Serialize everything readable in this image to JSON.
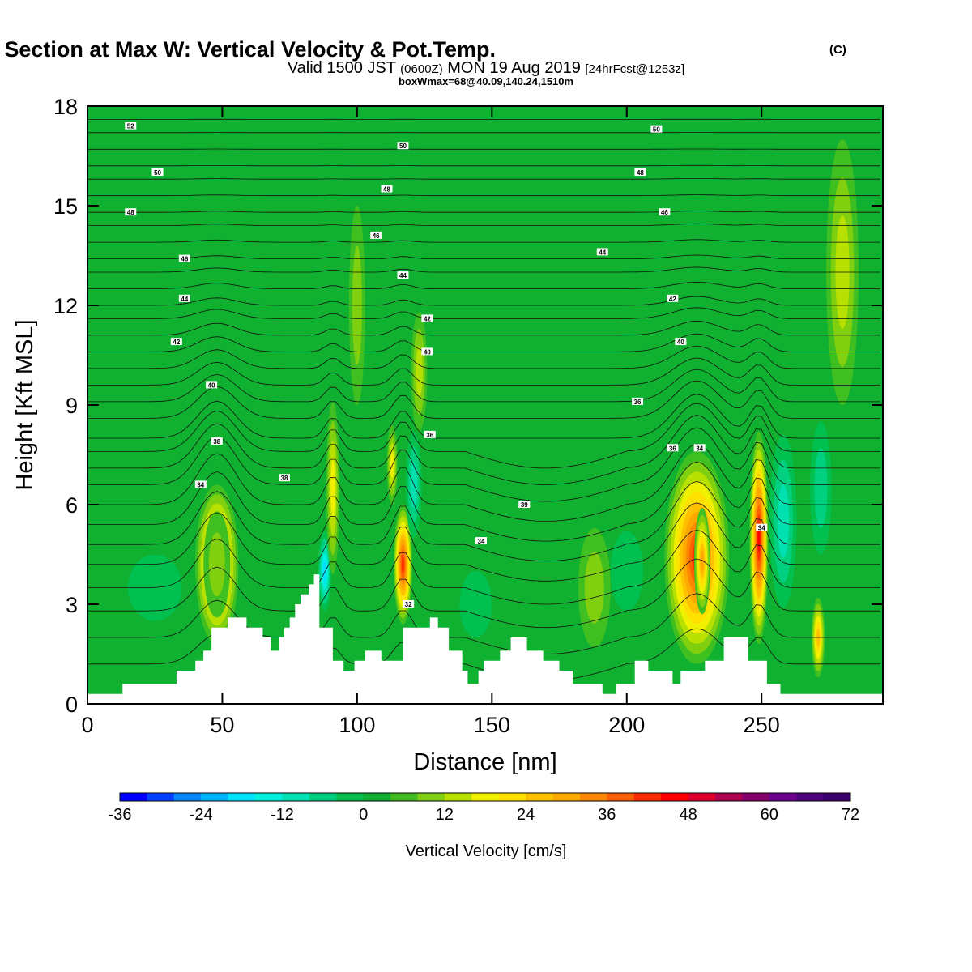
{
  "title": {
    "main": "Wind-Parallel Section at Max W: Vertical Velocity & Pot.Temp.",
    "copyright": "(C)",
    "valid_prefix": "Valid 1500 JST",
    "valid_utc": "(0600Z)",
    "valid_date": "MON 19 Aug 2019",
    "forecast": "[24hrFcst@1253z]",
    "boxwmax": "boxWmax=68@40.09,140.24,1510m"
  },
  "chart_data": {
    "type": "heatmap",
    "xlabel": "Distance [nm]",
    "ylabel": "Height [Kft MSL]",
    "xlim": [
      0,
      295
    ],
    "ylim": [
      0,
      18
    ],
    "xticks": [
      0,
      50,
      100,
      150,
      200,
      250
    ],
    "yticks": [
      0,
      3,
      6,
      9,
      12,
      15,
      18
    ],
    "colorbar": {
      "label": "Vertical Velocity [cm/s]",
      "min": -36,
      "max": 72,
      "step": 4,
      "tick_labels": [
        -36,
        -24,
        -12,
        0,
        12,
        24,
        36,
        48,
        60,
        72
      ],
      "colors": [
        "#0000ff",
        "#0044ff",
        "#0088ff",
        "#00b4ff",
        "#00e0ff",
        "#00f0e0",
        "#00e0b0",
        "#00d080",
        "#00c050",
        "#10b030",
        "#40c020",
        "#80d010",
        "#b8e000",
        "#f0f000",
        "#ffe000",
        "#ffc000",
        "#ffa800",
        "#ff8800",
        "#ff6000",
        "#ff3000",
        "#ff0000",
        "#e00030",
        "#b00050",
        "#880070",
        "#700090",
        "#500080",
        "#3c0070"
      ]
    },
    "terrain": {
      "distance_nm": [
        0,
        13,
        13,
        33,
        33,
        40,
        40,
        43,
        43,
        46,
        46,
        52,
        52,
        59,
        59,
        65,
        65,
        68,
        68,
        71,
        71,
        73,
        73,
        75,
        75,
        77,
        77,
        79,
        79,
        82,
        82,
        84,
        84,
        86,
        86,
        91,
        91,
        95,
        95,
        99,
        99,
        103,
        103,
        106,
        106,
        109,
        109,
        117,
        117,
        127,
        127,
        130,
        130,
        134,
        134,
        139,
        139,
        141,
        141,
        145,
        145,
        147,
        147,
        153,
        153,
        157,
        157,
        163,
        163,
        169,
        169,
        175,
        175,
        180,
        180,
        191,
        191,
        196,
        196,
        203,
        203,
        208,
        208,
        217,
        217,
        220,
        220,
        229,
        229,
        236,
        236,
        245,
        245,
        252,
        252,
        257,
        257,
        264,
        264,
        269,
        269,
        295
      ],
      "height_kft": [
        0.3,
        0.3,
        0.6,
        0.6,
        1.0,
        1.0,
        1.3,
        1.3,
        1.6,
        1.6,
        2.3,
        2.3,
        2.6,
        2.6,
        2.3,
        2.3,
        2.0,
        2.0,
        1.6,
        1.6,
        2.0,
        2.0,
        2.3,
        2.3,
        2.6,
        2.6,
        3.0,
        3.0,
        3.3,
        3.3,
        3.6,
        3.6,
        3.9,
        3.9,
        2.3,
        2.3,
        1.3,
        1.3,
        1.0,
        1.0,
        1.3,
        1.3,
        1.6,
        1.6,
        1.6,
        1.6,
        1.3,
        1.3,
        2.3,
        2.3,
        2.6,
        2.6,
        2.3,
        2.3,
        1.6,
        1.6,
        1.0,
        1.0,
        0.6,
        0.6,
        1.0,
        1.0,
        1.3,
        1.3,
        1.6,
        1.6,
        2.0,
        2.0,
        1.6,
        1.6,
        1.3,
        1.3,
        1.0,
        1.0,
        0.6,
        0.6,
        0.3,
        0.3,
        0.6,
        0.6,
        1.3,
        1.3,
        1.0,
        1.0,
        0.6,
        0.6,
        1.0,
        1.0,
        1.3,
        1.3,
        2.0,
        2.0,
        1.3,
        1.3,
        0.6,
        0.6,
        0.3,
        0.3,
        0.3,
        0.3,
        0.3,
        0.3
      ]
    },
    "velocity_cells": [
      {
        "x": 48,
        "y": 4.2,
        "sx": 8,
        "sy": 2.4,
        "v": 30
      },
      {
        "x": 48,
        "y": 4.2,
        "sx": 5,
        "sy": 1.6,
        "v": 8
      },
      {
        "x": 88,
        "y": 4.0,
        "sx": 2.5,
        "sy": 1.2,
        "v": -20
      },
      {
        "x": 91,
        "y": 6.5,
        "sx": 2.5,
        "sy": 2.6,
        "v": 16
      },
      {
        "x": 117,
        "y": 4.2,
        "sx": 3.5,
        "sy": 1.8,
        "v": 38
      },
      {
        "x": 113,
        "y": 7.2,
        "sx": 2,
        "sy": 1.2,
        "v": 14
      },
      {
        "x": 121,
        "y": 6.6,
        "sx": 3,
        "sy": 1.6,
        "v": -10
      },
      {
        "x": 123,
        "y": 10.0,
        "sx": 3,
        "sy": 1.8,
        "v": 12
      },
      {
        "x": 226,
        "y": 4.4,
        "sx": 12,
        "sy": 3.2,
        "v": 40
      },
      {
        "x": 228,
        "y": 4.3,
        "sx": 3,
        "sy": 1.6,
        "v": 28
      },
      {
        "x": 249,
        "y": 5.0,
        "sx": 3.5,
        "sy": 3.2,
        "v": 44
      },
      {
        "x": 258,
        "y": 5.5,
        "sx": 5,
        "sy": 2.6,
        "v": -10
      },
      {
        "x": 271,
        "y": 2.0,
        "sx": 2.5,
        "sy": 1.2,
        "v": 22
      },
      {
        "x": 188,
        "y": 3.5,
        "sx": 6,
        "sy": 1.8,
        "v": 8
      },
      {
        "x": 280,
        "y": 13.0,
        "sx": 6,
        "sy": 4.0,
        "v": 10
      },
      {
        "x": 272,
        "y": 6.5,
        "sx": 4,
        "sy": 2.0,
        "v": -8
      },
      {
        "x": 25,
        "y": 3.5,
        "sx": 10,
        "sy": 1.0,
        "v": -4
      },
      {
        "x": 144,
        "y": 3.0,
        "sx": 6,
        "sy": 1.0,
        "v": -4
      },
      {
        "x": 200,
        "y": 4.0,
        "sx": 6,
        "sy": 1.2,
        "v": -4
      },
      {
        "x": 100,
        "y": 12.0,
        "sx": 3,
        "sy": 3.0,
        "v": 6
      }
    ],
    "isentropes": [
      {
        "level": "52",
        "label_x": 16,
        "label_y": 17.4
      },
      {
        "level": "50",
        "label_x": 26,
        "label_y": 16.0
      },
      {
        "level": "48",
        "label_x": 16,
        "label_y": 14.8
      },
      {
        "level": "46",
        "label_x": 36,
        "label_y": 13.4
      },
      {
        "level": "44",
        "label_x": 36,
        "label_y": 12.2
      },
      {
        "level": "42",
        "label_x": 33,
        "label_y": 10.9
      },
      {
        "level": "40",
        "label_x": 46,
        "label_y": 9.6
      },
      {
        "level": "38",
        "label_x": 48,
        "label_y": 7.9
      },
      {
        "level": "34",
        "label_x": 42,
        "label_y": 6.6
      },
      {
        "level": "38",
        "label_x": 73,
        "label_y": 6.8
      },
      {
        "level": "50",
        "label_x": 117,
        "label_y": 16.8
      },
      {
        "level": "48",
        "label_x": 111,
        "label_y": 15.5
      },
      {
        "level": "46",
        "label_x": 107,
        "label_y": 14.1
      },
      {
        "level": "44",
        "label_x": 117,
        "label_y": 12.9
      },
      {
        "level": "42",
        "label_x": 126,
        "label_y": 11.6
      },
      {
        "level": "40",
        "label_x": 126,
        "label_y": 10.6
      },
      {
        "level": "36",
        "label_x": 127,
        "label_y": 8.1
      },
      {
        "level": "39",
        "label_x": 162,
        "label_y": 6.0
      },
      {
        "level": "34",
        "label_x": 146,
        "label_y": 4.9
      },
      {
        "level": "32",
        "label_x": 119,
        "label_y": 3.0
      },
      {
        "level": "50",
        "label_x": 211,
        "label_y": 17.3
      },
      {
        "level": "48",
        "label_x": 205,
        "label_y": 16.0
      },
      {
        "level": "46",
        "label_x": 214,
        "label_y": 14.8
      },
      {
        "level": "44",
        "label_x": 191,
        "label_y": 13.6
      },
      {
        "level": "42",
        "label_x": 217,
        "label_y": 12.2
      },
      {
        "level": "40",
        "label_x": 220,
        "label_y": 10.9
      },
      {
        "level": "36",
        "label_x": 204,
        "label_y": 9.1
      },
      {
        "level": "36",
        "label_x": 217,
        "label_y": 7.7
      },
      {
        "level": "34",
        "label_x": 227,
        "label_y": 7.7
      },
      {
        "level": "34",
        "label_x": 250,
        "label_y": 5.3
      }
    ],
    "isentrope_levels_kft": [
      1.2,
      2.0,
      2.8,
      3.5,
      4.2,
      4.8,
      5.4,
      6.0,
      6.6,
      7.1,
      7.6,
      8.0,
      8.6,
      9.1,
      9.6,
      10.1,
      10.6,
      11.1,
      11.6,
      12.0,
      12.5,
      13.0,
      13.4,
      13.9,
      14.4,
      14.8,
      15.3,
      15.8,
      16.2,
      16.7,
      17.2,
      17.6
    ]
  }
}
